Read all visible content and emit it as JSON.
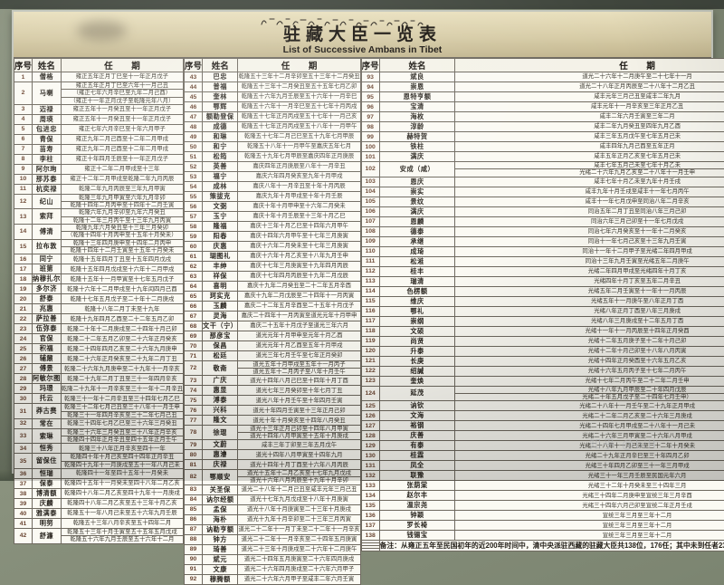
{
  "header": {
    "tibetan": "བོད་སྡོད་ཨམ་བན་རིམ་བྱོན་གྱི་རེའུ་མིག",
    "title_cn": "驻藏大臣一览表",
    "title_en": "List of Successive Ambans in Tibet"
  },
  "table": {
    "columns": {
      "no": "序号",
      "name": "姓名",
      "term": "任 期"
    }
  },
  "note": "备注：从雍正五年至民国初年的近200年时间中，清中央派驻西藏的驻藏大臣共138位，176任；其中未到任者23人，两次、三次复任者36人。",
  "watermark": "知乎 @bill",
  "groups": [
    {
      "rows": [
        {
          "no": "1",
          "name": "僧格",
          "terms": [
            "雍正五年正月丁巳至十一年正月戊子"
          ]
        },
        {
          "no": "2",
          "name": "马喇",
          "terms": [
            "雍正五年正月丁巳至六年十一月己丑",
            "（雍正七年六月辛巳至九年二月己酉）",
            "（雍正十一年正月戊子至乾隆元年八月）"
          ]
        },
        {
          "no": "3",
          "name": "迈禄",
          "terms": [
            "雍正五年十一月癸丑至十一年正月戊子"
          ]
        },
        {
          "no": "4",
          "name": "周瑛",
          "terms": [
            "雍正五年十一月癸丑至十一年正月戊子"
          ]
        },
        {
          "no": "5",
          "name": "包进忠",
          "terms": [
            "雍正七年六月辛巳至十年六月甲子"
          ]
        },
        {
          "no": "6",
          "name": "青保",
          "terms": [
            "雍正九年二月己酉至十二年二月甲戌"
          ]
        },
        {
          "no": "7",
          "name": "苗寿",
          "terms": [
            "雍正九年二月己酉至十二年二月甲戌"
          ]
        },
        {
          "no": "8",
          "name": "李柱",
          "terms": [
            "雍正十年四月壬辰至十一年正月戊子"
          ]
        },
        {
          "no": "9",
          "name": "阿尔珣",
          "terms": [
            "雍正十二年二月甲戌至十三年"
          ]
        },
        {
          "no": "10",
          "name": "那苏泰",
          "terms": [
            "雍正十二年二月甲戌至乾隆二年九月丙辰"
          ]
        },
        {
          "no": "11",
          "name": "杭奕禄",
          "terms": [
            "乾隆二年九月丙辰至三年九月甲寅"
          ]
        },
        {
          "no": "12",
          "name": "纪山",
          "terms": [
            "乾隆三年九月甲寅至六年九月辛卯",
            "乾隆十四年二月丙申至十四年十二月壬寅"
          ]
        },
        {
          "no": "13",
          "name": "索拜",
          "terms": [
            "乾隆六年九月辛卯至九年六月癸丑",
            "乾隆十二年三月丙午至十三年九月丙寅"
          ]
        },
        {
          "no": "14",
          "name": "傅清",
          "terms": [
            "乾隆九年六月癸丑至十三年三月癸卯",
            "（乾隆十四年十月丙申至十五年十月癸未）"
          ]
        },
        {
          "no": "15",
          "name": "拉布敦",
          "terms": [
            "乾隆十三年四月庚申至十四年二月丙申",
            "乾隆十四年十二月壬寅至十五年十月癸未"
          ]
        },
        {
          "no": "16",
          "name": "同宁",
          "terms": [
            "乾隆十五年四月丁丑至十五年四月戊戌"
          ]
        },
        {
          "no": "17",
          "name": "班第",
          "terms": [
            "乾隆十五年四月戊戌至十六年十二月甲戌"
          ]
        },
        {
          "no": "18",
          "name": "纳穆扎尔",
          "terms": [
            "乾隆十五年十一月甲寅至十七年五月戊子"
          ]
        },
        {
          "no": "19",
          "name": "多尔济",
          "terms": [
            "乾隆十六年十二月甲戌至十九年闰四月己酉"
          ]
        },
        {
          "no": "20",
          "name": "舒泰",
          "terms": [
            "乾隆十七年五月戊子至二十年十二月庚戌"
          ]
        },
        {
          "no": "21",
          "name": "兆惠",
          "terms": [
            "乾隆十八年二月丁未至十九年"
          ]
        },
        {
          "no": "22",
          "name": "萨拉善",
          "terms": [
            "乾隆十九年四月乙酉至二十二年五月乙卯"
          ]
        },
        {
          "no": "23",
          "name": "伍弥泰",
          "terms": [
            "乾隆二十年十二月庚戌至二十四年十月己卯"
          ]
        },
        {
          "no": "24",
          "name": "官保",
          "terms": [
            "乾隆二十二年五月乙卯至二十六年正月癸亥"
          ]
        },
        {
          "no": "25",
          "name": "积福",
          "terms": [
            "乾隆二十四年四月乙亥至二十六年九月庚申"
          ]
        },
        {
          "no": "26",
          "name": "辅鼐",
          "terms": [
            "乾隆二十六年正月癸亥至二十九年二月丁丑"
          ]
        },
        {
          "no": "27",
          "name": "傅景",
          "terms": [
            "乾隆二十六年九月庚申至二十九年十一月辛亥"
          ]
        },
        {
          "no": "28",
          "name": "阿敏尔图",
          "terms": [
            "乾隆二十九年二月丁丑至三十一年四月辛亥"
          ]
        },
        {
          "no": "29",
          "name": "玛璟",
          "terms": [
            "乾隆二十九年十一月辛亥至三十一年十二月辛丑"
          ]
        },
        {
          "no": "30",
          "name": "托云",
          "terms": [
            "乾隆三十一年十二月辛丑至三十四年七月乙巳"
          ]
        },
        {
          "no": "31",
          "name": "莽古赉",
          "terms": [
            "乾隆三十二年七月己丑至三十八年十一月壬申",
            "乾隆三十一年四月辛亥至三十二年七月己丑"
          ]
        },
        {
          "no": "32",
          "name": "常在",
          "terms": [
            "乾隆三十四年七月乙巳至三十六年三月癸丑"
          ]
        },
        {
          "no": "33",
          "name": "索琳",
          "terms": [
            "乾隆三十六年三月癸丑至三十八年正月辛亥",
            "乾隆四十四年正月辛丑至四十五年正月壬午"
          ]
        },
        {
          "no": "34",
          "name": "恒秀",
          "terms": [
            "乾隆三十八年正月辛亥至四十一年"
          ]
        },
        {
          "no": "35",
          "name": "留保住",
          "terms": [
            "乾隆四十年十月己亥至四十四年正月辛丑",
            "乾隆四十九年十一月庚戌至五十一年八月己未"
          ]
        },
        {
          "no": "36",
          "name": "恒瑞",
          "terms": [
            "乾隆四十一年至四十五年十一月癸未"
          ]
        },
        {
          "no": "37",
          "name": "保泰",
          "terms": [
            "乾隆四十五年十一月癸未至四十八年二月乙亥"
          ]
        },
        {
          "no": "38",
          "name": "博清额",
          "terms": [
            "乾隆四十八年二月乙亥至四十九年十一月庚戌"
          ]
        },
        {
          "no": "39",
          "name": "庆麟",
          "terms": [
            "乾隆四十八年二月乙亥至五十三年十月乙亥"
          ]
        },
        {
          "no": "40",
          "name": "雅满泰",
          "terms": [
            "乾隆五十一年八月己未至五十六年九月壬辰"
          ]
        },
        {
          "no": "41",
          "name": "明努",
          "terms": [
            "乾隆五十三年八月辛亥至五十四年二月"
          ]
        },
        {
          "no": "42",
          "name": "舒濂",
          "terms": [
            "乾隆五十三年十月壬寅至五十五年五月戊戌",
            "乾隆五十六年九月壬辰至五十六年十二月"
          ]
        }
      ]
    },
    {
      "rows": [
        {
          "no": "43",
          "name": "巴忠",
          "terms": [
            "乾隆五十三年十二月辛卯至五十三年十二月癸丑"
          ]
        },
        {
          "no": "44",
          "name": "普福",
          "terms": [
            "乾隆五十三年十二月癸丑至五十五年七月乙卯"
          ]
        },
        {
          "no": "45",
          "name": "奎林",
          "terms": [
            "乾隆五十六年九月壬辰至五十六年十一月辛巳"
          ]
        },
        {
          "no": "46",
          "name": "鄂辉",
          "terms": [
            "乾隆五十六年十一月辛巳至五十七年十月丙戌"
          ]
        },
        {
          "no": "47",
          "name": "额勒登保",
          "terms": [
            "乾隆五十七年正月丙戌至五十七年十一月己亥"
          ]
        },
        {
          "no": "48",
          "name": "成德",
          "terms": [
            "乾隆五十七年正月丙戌至五十八年十一月甲午"
          ]
        },
        {
          "no": "49",
          "name": "和琳",
          "terms": [
            "乾隆五十七年二月己巳至五十九年七月甲辰"
          ]
        },
        {
          "no": "50",
          "name": "和宁",
          "terms": [
            "乾隆五十八年十一月甲午至嘉庆五年七月"
          ]
        },
        {
          "no": "51",
          "name": "松筠",
          "terms": [
            "乾隆五十九年七月甲辰至嘉庆四年正月庚辰"
          ]
        },
        {
          "no": "52",
          "name": "英善",
          "terms": [
            "嘉庆四年正月庚辰至八年十一月辛丑"
          ]
        },
        {
          "no": "53",
          "name": "福宁",
          "terms": [
            "嘉庆六年四月癸亥至九年十月甲戌"
          ]
        },
        {
          "no": "54",
          "name": "成林",
          "terms": [
            "嘉庆八年十一月辛丑至十年十月丙辰"
          ]
        },
        {
          "no": "55",
          "name": "策拔克",
          "terms": [
            "嘉庆九年十月甲戌至十年十月壬辰"
          ]
        },
        {
          "no": "56",
          "name": "文弼",
          "terms": [
            "嘉庆十年十月甲申至十六年二月癸未"
          ]
        },
        {
          "no": "57",
          "name": "玉宁",
          "terms": [
            "嘉庆十年十月壬辰至十三年十月乙巳"
          ]
        },
        {
          "no": "58",
          "name": "隆福",
          "terms": [
            "嘉庆十三年十月乙巳至十四年六月甲午"
          ]
        },
        {
          "no": "59",
          "name": "阳春",
          "terms": [
            "嘉庆十四年六月甲午至十七年三月庚寅"
          ]
        },
        {
          "no": "60",
          "name": "庆惠",
          "terms": [
            "嘉庆十六年二月癸未至十七年三月庚寅"
          ]
        },
        {
          "no": "61",
          "name": "瑚图礼",
          "terms": [
            "嘉庆十六年十月乙亥至十八年九月壬申"
          ]
        },
        {
          "no": "62",
          "name": "丰绅",
          "terms": [
            "嘉庆十七年三月庚寅至十九年四月丙辰"
          ]
        },
        {
          "no": "63",
          "name": "祥保",
          "terms": [
            "嘉庆十七年四月丙辰至十九年二月戊辰"
          ]
        },
        {
          "no": "64",
          "name": "喜明",
          "terms": [
            "嘉庆十九年二月癸丑至二十二年五月辛酉"
          ]
        },
        {
          "no": "65",
          "name": "珂实克",
          "terms": [
            "嘉庆十九年二月戊辰至二十四年十一月丙寅"
          ]
        },
        {
          "no": "66",
          "name": "玉麟",
          "terms": [
            "嘉庆二十二年五月辛酉至二十五年十月戊子"
          ]
        },
        {
          "no": "67",
          "name": "灵海",
          "terms": [
            "嘉庆二十四年十一月丙寅至道光元年十月甲申"
          ]
        },
        {
          "no": "68",
          "name": "文干（宁）",
          "terms": [
            "嘉庆二十五年十月戊子至道光三年六月"
          ]
        },
        {
          "no": "69",
          "name": "那彦宝",
          "terms": [
            "道光元年十月甲申至元年十月乙酉"
          ]
        },
        {
          "no": "70",
          "name": "保昌",
          "terms": [
            "道光元年十月乙酉至五年十月甲戌"
          ]
        },
        {
          "no": "71",
          "name": "松廷",
          "terms": [
            "道光三年七月壬午至七年正月癸卯"
          ]
        },
        {
          "no": "72",
          "name": "敬斋",
          "terms": [
            "道光五年十月甲戌至五年十一月丙子",
            "道光五年十二月丙子至八年十月壬午"
          ]
        },
        {
          "no": "73",
          "name": "广庆",
          "terms": [
            "道光十四年八月己巳至十四年十月丁酉"
          ]
        },
        {
          "no": "74",
          "name": "惠显",
          "terms": [
            "道光七年三月癸卯至十年七月丁丑"
          ]
        },
        {
          "no": "75",
          "name": "溥泰",
          "terms": [
            "道光八年十月壬午至十年四月壬寅"
          ]
        },
        {
          "no": "76",
          "name": "兴科",
          "terms": [
            "道光十年四月壬寅至十三年正月己卯"
          ]
        },
        {
          "no": "77",
          "name": "隆文",
          "terms": [
            "道光十年十月癸亥至十四年八月癸丑"
          ]
        },
        {
          "no": "78",
          "name": "徐琨",
          "terms": [
            "道光十三年正月己卯至十四年八月甲寅",
            "道光十四年八月甲寅至十五年十月庚戌"
          ]
        },
        {
          "no": "79",
          "name": "文蔚",
          "terms": [
            "咸丰三年丁卯至三年五月戊午"
          ]
        },
        {
          "no": "80",
          "name": "惠濬",
          "terms": [
            "道光十四年八月甲寅至十四年九月"
          ]
        },
        {
          "no": "81",
          "name": "庆禄",
          "terms": [
            "道光十四年十月丁酉至十六年八月丙辰"
          ]
        },
        {
          "no": "82",
          "name": "鄂顺安",
          "terms": [
            "道光十五年十二月乙亥至十七年九月戊戌",
            "道光十六年八月丙辰至十九年十月辛卯"
          ]
        },
        {
          "no": "83",
          "name": "关圣保",
          "terms": [
            "道光二十八年十二月己丑至咸丰元年三月己丑"
          ]
        },
        {
          "no": "84",
          "name": "讷尔经额",
          "terms": [
            "道光十七年九月戊戌至十八年十月庚寅"
          ]
        },
        {
          "no": "85",
          "name": "孟保",
          "terms": [
            "道光十八年十月庚寅至二十三年十月庚戌"
          ]
        },
        {
          "no": "86",
          "name": "海朴",
          "terms": [
            "道光十九年十月辛卯至二十三年三月丙寅"
          ]
        },
        {
          "no": "87",
          "name": "讷勒亨额",
          "terms": [
            "道光二十二年十一月丁未至二十二年十一月辛亥"
          ]
        },
        {
          "no": "88",
          "name": "钟方",
          "terms": [
            "道光二十二年十一月辛亥至二十四年五月庚寅"
          ]
        },
        {
          "no": "89",
          "name": "琦善",
          "terms": [
            "道光二十三年十月庚戌至二十六年十二月庚午"
          ]
        },
        {
          "no": "90",
          "name": "斌元",
          "terms": [
            "道光二十四年五月庚寅至二十六年四月庚戌"
          ]
        },
        {
          "no": "91",
          "name": "文康",
          "terms": [
            "道光二十六年四月庚戌至二十六年六月甲子"
          ]
        },
        {
          "no": "92",
          "name": "穆腾额",
          "terms": [
            "道光二十六年六月甲子至咸丰二年六月壬寅"
          ]
        }
      ]
    },
    {
      "rows": [
        {
          "no": "93",
          "name": "斌良",
          "terms": [
            "道光二十六年十二月庚午至二十七年十一月"
          ]
        },
        {
          "no": "94",
          "name": "崇恩",
          "terms": [
            "道光二十八年正月丙辰至二十八年十二月乙丑"
          ]
        },
        {
          "no": "95",
          "name": "恩特亨额",
          "terms": [
            "咸丰元年三月己丑至咸丰二年九月"
          ]
        },
        {
          "no": "96",
          "name": "宝清",
          "terms": [
            "咸丰元年十一月辛亥至三年正月乙丑"
          ]
        },
        {
          "no": "97",
          "name": "海枚",
          "terms": [
            "咸丰二年六月壬寅至三年二月"
          ]
        },
        {
          "no": "98",
          "name": "淳龄",
          "terms": [
            "咸丰二年九月癸丑至四年九月乙酉"
          ]
        },
        {
          "no": "99",
          "name": "赫特贺",
          "terms": [
            "咸丰三年五月戊午至七年五月己未"
          ]
        },
        {
          "no": "100",
          "name": "铁柱",
          "terms": [
            "咸丰四年九月己酉至五年正月"
          ]
        },
        {
          "no": "101",
          "name": "满庆",
          "terms": [
            "咸丰五年正月乙亥至七年五月己未"
          ]
        },
        {
          "no": "102",
          "name": "安成（咸）",
          "terms": [
            "咸丰七年五月己未至七年十月乙未",
            "光绪二十六年九月乙亥至二十八年十一月壬申"
          ]
        },
        {
          "no": "103",
          "name": "恩庆",
          "terms": [
            "咸丰七年十月乙未至九年十月壬戌"
          ]
        },
        {
          "no": "104",
          "name": "崇实",
          "terms": [
            "咸丰九年十月壬戌至咸丰十一年七月丙午"
          ]
        },
        {
          "no": "105",
          "name": "景纹",
          "terms": [
            "咸丰十一年七月戊申至同治八年二月辛亥"
          ]
        },
        {
          "no": "106",
          "name": "满庆",
          "terms": [
            "同治五年二月丁丑至同治八年三月己卯"
          ]
        },
        {
          "no": "107",
          "name": "恩麟",
          "terms": [
            "同治六年三月己卯至十一年七月戊戌"
          ]
        },
        {
          "no": "108",
          "name": "德泰",
          "terms": [
            "同治七年六月癸亥至十一年十二月癸亥"
          ]
        },
        {
          "no": "109",
          "name": "承继",
          "terms": [
            "同治十一年七月己亥至十三年九月壬寅"
          ]
        },
        {
          "no": "110",
          "name": "成琦",
          "terms": [
            "同治十一年十二月甲子至光绪二年四月甲戌"
          ]
        },
        {
          "no": "111",
          "name": "松溎",
          "terms": [
            "同治十三年九月壬寅至光绪五年二月庚午"
          ]
        },
        {
          "no": "112",
          "name": "桂丰",
          "terms": [
            "光绪二年四月甲戌至光绪四年十月丁亥"
          ]
        },
        {
          "no": "113",
          "name": "瑞清",
          "terms": [
            "光绪四年十月丁亥至五年二月辛丑"
          ]
        },
        {
          "no": "114",
          "name": "色楞额",
          "terms": [
            "光绪五年二月壬寅至十一年十一月丙辰"
          ]
        },
        {
          "no": "115",
          "name": "维庆",
          "terms": [
            "光绪五年十一月庚午至八年正月丁酉"
          ]
        },
        {
          "no": "116",
          "name": "鄂礼",
          "terms": [
            "光绪八年正月丁酉至八年三月庚戌"
          ]
        },
        {
          "no": "117",
          "name": "崇纲",
          "terms": [
            "光绪八年三月庚戌至十二年五月丁酉"
          ]
        },
        {
          "no": "118",
          "name": "文硕",
          "terms": [
            "光绪十一年十一月丙辰至十四年正月癸酉"
          ]
        },
        {
          "no": "119",
          "name": "尚贤",
          "terms": [
            "光绪十二年五月庚子至十二年十月己卯"
          ]
        },
        {
          "no": "120",
          "name": "升泰",
          "terms": [
            "光绪十二年十月己卯至十八年八月丙寅"
          ]
        },
        {
          "no": "121",
          "name": "长庚",
          "terms": [
            "光绪十四年正月癸酉至十六年五月乙亥"
          ]
        },
        {
          "no": "122",
          "name": "绍諴",
          "terms": [
            "光绪十六年五月丙子至十七年二月丙午"
          ]
        },
        {
          "no": "123",
          "name": "奎焕",
          "terms": [
            "光绪十七年二月丙午至二十二年二月壬申"
          ]
        },
        {
          "no": "124",
          "name": "延茂",
          "terms": [
            "光绪十八年九月甲辰至二十年四月戊辰",
            "光绪二十年五月戊子至二十四年七月壬申）"
          ]
        },
        {
          "no": "125",
          "name": "讷钦",
          "terms": [
            "光绪二十八年十一月壬午至二十九年正月甲戌"
          ]
        },
        {
          "no": "126",
          "name": "文海",
          "terms": [
            "光绪二十二年二月乙亥至二十六年三月庚戌"
          ]
        },
        {
          "no": "127",
          "name": "裕钢",
          "terms": [
            "光绪二十四年七月甲戌至二十八年十一月己未"
          ]
        },
        {
          "no": "128",
          "name": "庆善",
          "terms": [
            "光绪二十六年三月甲寅至二十六年八月甲戌"
          ]
        },
        {
          "no": "129",
          "name": "有泰",
          "terms": [
            "光绪二十八年十一月己未至三十二年十月癸未"
          ]
        },
        {
          "no": "130",
          "name": "桂霖",
          "terms": [
            "光绪二十九年正月辛巳至三十年四月乙卯"
          ]
        },
        {
          "no": "131",
          "name": "凤全",
          "terms": [
            "光绪三十年四月乙卯至三十一年三月甲戌"
          ]
        },
        {
          "no": "132",
          "name": "联豫",
          "terms": [
            "光绪三十一年三月壬辰至民国元年六月"
          ]
        },
        {
          "no": "133",
          "name": "张荫棠",
          "terms": [
            "光绪三十二年十月癸未至三十四年三月"
          ]
        },
        {
          "no": "134",
          "name": "赵尔丰",
          "terms": [
            "光绪三十四年二月庚申至宣统三年三月辛酉"
          ]
        },
        {
          "no": "135",
          "name": "温宗尧",
          "terms": [
            "光绪三十四年六月己卯至宣统二年正月壬戌"
          ]
        },
        {
          "no": "136",
          "name": "钟颖",
          "terms": [
            "宣统三年三月至三年十二月"
          ]
        },
        {
          "no": "137",
          "name": "罗长裿",
          "terms": [
            "宣统三年三月至三年十二月"
          ]
        },
        {
          "no": "138",
          "name": "钱锡宝",
          "terms": [
            "宣统三年三月至三年十二月"
          ]
        }
      ]
    }
  ]
}
